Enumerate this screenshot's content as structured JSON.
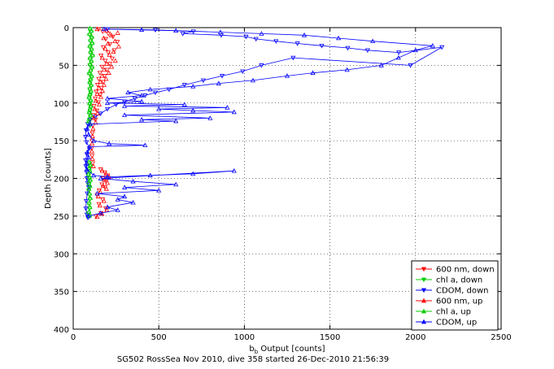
{
  "chart_data": {
    "type": "scatter",
    "xlabel_main": "b",
    "xlabel_sub": "b",
    "xlabel_rest": " Output [counts]",
    "ylabel": "Depth [counts]",
    "caption": "SG502 RossSea Nov 2010, dive 358 started 26-Dec-2010 21:56:39",
    "xlim": [
      0,
      2500
    ],
    "ylim": [
      0,
      400
    ],
    "y_reversed": true,
    "grid": true,
    "legend_position": "bottom-right",
    "xticks": [
      0,
      500,
      1000,
      1500,
      2000,
      2500
    ],
    "yticks": [
      0,
      50,
      100,
      150,
      200,
      250,
      300,
      350,
      400
    ],
    "series": [
      {
        "name": "600 nm, down",
        "color": "#ff0000",
        "marker": "down",
        "connected": false,
        "points": [
          [
            148,
            2
          ],
          [
            172,
            5
          ],
          [
            205,
            8
          ],
          [
            232,
            12
          ],
          [
            190,
            15
          ],
          [
            258,
            19
          ],
          [
            214,
            22
          ],
          [
            176,
            26
          ],
          [
            240,
            30
          ],
          [
            204,
            33
          ],
          [
            162,
            37
          ],
          [
            228,
            41
          ],
          [
            187,
            44
          ],
          [
            214,
            48
          ],
          [
            169,
            52
          ],
          [
            198,
            56
          ],
          [
            156,
            60
          ],
          [
            183,
            64
          ],
          [
            149,
            68
          ],
          [
            176,
            72
          ],
          [
            142,
            76
          ],
          [
            165,
            80
          ],
          [
            134,
            85
          ],
          [
            158,
            89
          ],
          [
            129,
            94
          ],
          [
            147,
            99
          ],
          [
            122,
            104
          ],
          [
            138,
            110
          ],
          [
            118,
            116
          ],
          [
            130,
            122
          ],
          [
            114,
            130
          ],
          [
            112,
            140
          ],
          [
            110,
            150
          ],
          [
            108,
            160
          ],
          [
            110,
            170
          ],
          [
            114,
            180
          ],
          [
            160,
            188
          ],
          [
            184,
            192
          ],
          [
            200,
            196
          ],
          [
            176,
            200
          ],
          [
            192,
            204
          ],
          [
            168,
            208
          ],
          [
            186,
            212
          ],
          [
            152,
            216
          ],
          [
            140,
            222
          ],
          [
            172,
            228
          ],
          [
            150,
            234
          ],
          [
            190,
            240
          ],
          [
            162,
            246
          ],
          [
            134,
            250
          ]
        ]
      },
      {
        "name": "chl a, down",
        "color": "#00cc00",
        "marker": "down",
        "connected": false,
        "points": [
          [
            100,
            2
          ],
          [
            104,
            6
          ],
          [
            96,
            10
          ],
          [
            108,
            14
          ],
          [
            102,
            18
          ],
          [
            110,
            22
          ],
          [
            98,
            26
          ],
          [
            106,
            30
          ],
          [
            101,
            34
          ],
          [
            112,
            38
          ],
          [
            99,
            42
          ],
          [
            105,
            46
          ],
          [
            97,
            50
          ],
          [
            109,
            54
          ],
          [
            103,
            58
          ],
          [
            95,
            62
          ],
          [
            107,
            66
          ],
          [
            100,
            70
          ],
          [
            98,
            74
          ],
          [
            104,
            78
          ],
          [
            96,
            82
          ],
          [
            102,
            86
          ],
          [
            99,
            90
          ],
          [
            94,
            94
          ],
          [
            101,
            98
          ],
          [
            97,
            102
          ],
          [
            103,
            106
          ],
          [
            99,
            110
          ],
          [
            95,
            114
          ],
          [
            100,
            118
          ],
          [
            96,
            122
          ],
          [
            92,
            126
          ],
          [
            98,
            130
          ],
          [
            94,
            180
          ],
          [
            98,
            184
          ],
          [
            92,
            188
          ],
          [
            96,
            192
          ],
          [
            90,
            196
          ],
          [
            94,
            200
          ],
          [
            98,
            204
          ],
          [
            92,
            208
          ],
          [
            96,
            212
          ],
          [
            90,
            216
          ],
          [
            94,
            222
          ],
          [
            98,
            228
          ],
          [
            92,
            234
          ],
          [
            96,
            240
          ],
          [
            90,
            246
          ],
          [
            94,
            250
          ]
        ]
      },
      {
        "name": "CDOM, down",
        "color": "#0000ff",
        "marker": "down",
        "connected": true,
        "points": [
          [
            200,
            2
          ],
          [
            480,
            3
          ],
          [
            702,
            5
          ],
          [
            640,
            8
          ],
          [
            865,
            10
          ],
          [
            1010,
            12
          ],
          [
            1068,
            15
          ],
          [
            1185,
            18
          ],
          [
            1310,
            21
          ],
          [
            1452,
            24
          ],
          [
            1604,
            27
          ],
          [
            1720,
            30
          ],
          [
            1902,
            33
          ],
          [
            2154,
            26
          ],
          [
            1970,
            50
          ],
          [
            1285,
            40
          ],
          [
            1100,
            50
          ],
          [
            990,
            58
          ],
          [
            870,
            64
          ],
          [
            760,
            70
          ],
          [
            650,
            76
          ],
          [
            560,
            82
          ],
          [
            480,
            86
          ],
          [
            420,
            90
          ],
          [
            360,
            94
          ],
          [
            300,
            98
          ],
          [
            250,
            102
          ],
          [
            200,
            108
          ],
          [
            160,
            114
          ],
          [
            130,
            118
          ],
          [
            100,
            122
          ],
          [
            85,
            128
          ],
          [
            75,
            136
          ],
          [
            72,
            145
          ],
          [
            78,
            152
          ],
          [
            95,
            160
          ],
          [
            80,
            168
          ],
          [
            72,
            176
          ],
          [
            74,
            184
          ],
          [
            78,
            192
          ],
          [
            80,
            200
          ],
          [
            84,
            206
          ],
          [
            90,
            212
          ],
          [
            82,
            220
          ],
          [
            76,
            230
          ],
          [
            74,
            240
          ],
          [
            80,
            248
          ],
          [
            86,
            252
          ]
        ]
      },
      {
        "name": "600 nm, up",
        "color": "#ff0000",
        "marker": "up",
        "connected": false,
        "points": [
          [
            140,
            2
          ],
          [
            196,
            4
          ],
          [
            260,
            7
          ],
          [
            222,
            10
          ],
          [
            178,
            14
          ],
          [
            244,
            18
          ],
          [
            203,
            21
          ],
          [
            266,
            25
          ],
          [
            188,
            28
          ],
          [
            235,
            32
          ],
          [
            212,
            36
          ],
          [
            170,
            40
          ],
          [
            246,
            44
          ],
          [
            195,
            48
          ],
          [
            224,
            52
          ],
          [
            180,
            56
          ],
          [
            208,
            60
          ],
          [
            168,
            64
          ],
          [
            192,
            68
          ],
          [
            158,
            72
          ],
          [
            180,
            76
          ],
          [
            150,
            80
          ],
          [
            171,
            84
          ],
          [
            140,
            88
          ],
          [
            161,
            92
          ],
          [
            133,
            97
          ],
          [
            152,
            102
          ],
          [
            126,
            108
          ],
          [
            142,
            114
          ],
          [
            120,
            120
          ],
          [
            131,
            126
          ],
          [
            116,
            134
          ],
          [
            113,
            144
          ],
          [
            110,
            154
          ],
          [
            109,
            164
          ],
          [
            112,
            174
          ],
          [
            118,
            184
          ],
          [
            170,
            190
          ],
          [
            192,
            194
          ],
          [
            210,
            198
          ],
          [
            182,
            202
          ],
          [
            200,
            206
          ],
          [
            174,
            210
          ],
          [
            194,
            214
          ],
          [
            158,
            218
          ],
          [
            146,
            224
          ],
          [
            180,
            230
          ],
          [
            156,
            236
          ],
          [
            196,
            242
          ],
          [
            168,
            247
          ],
          [
            140,
            251
          ]
        ]
      },
      {
        "name": "chl a, up",
        "color": "#00cc00",
        "marker": "up",
        "connected": false,
        "points": [
          [
            98,
            1
          ],
          [
            106,
            4
          ],
          [
            94,
            8
          ],
          [
            110,
            12
          ],
          [
            100,
            16
          ],
          [
            112,
            20
          ],
          [
            96,
            24
          ],
          [
            108,
            28
          ],
          [
            102,
            32
          ],
          [
            114,
            36
          ],
          [
            97,
            40
          ],
          [
            107,
            44
          ],
          [
            99,
            48
          ],
          [
            111,
            52
          ],
          [
            101,
            56
          ],
          [
            93,
            60
          ],
          [
            109,
            64
          ],
          [
            102,
            68
          ],
          [
            96,
            72
          ],
          [
            106,
            76
          ],
          [
            98,
            80
          ],
          [
            104,
            84
          ],
          [
            97,
            88
          ],
          [
            92,
            92
          ],
          [
            103,
            96
          ],
          [
            95,
            100
          ],
          [
            101,
            104
          ],
          [
            97,
            108
          ],
          [
            93,
            112
          ],
          [
            102,
            116
          ],
          [
            94,
            120
          ],
          [
            90,
            124
          ],
          [
            100,
            128
          ],
          [
            92,
            178
          ],
          [
            100,
            182
          ],
          [
            94,
            186
          ],
          [
            98,
            190
          ],
          [
            88,
            194
          ],
          [
            96,
            198
          ],
          [
            100,
            202
          ],
          [
            90,
            206
          ],
          [
            98,
            210
          ],
          [
            92,
            214
          ],
          [
            96,
            220
          ],
          [
            100,
            226
          ],
          [
            94,
            232
          ],
          [
            98,
            238
          ],
          [
            92,
            244
          ],
          [
            96,
            249
          ]
        ]
      },
      {
        "name": "CDOM, up",
        "color": "#0000ff",
        "marker": "up",
        "connected": true,
        "points": [
          [
            90,
            250
          ],
          [
            160,
            246
          ],
          [
            260,
            242
          ],
          [
            200,
            238
          ],
          [
            350,
            232
          ],
          [
            260,
            228
          ],
          [
            300,
            224
          ],
          [
            140,
            220
          ],
          [
            500,
            216
          ],
          [
            300,
            212
          ],
          [
            600,
            208
          ],
          [
            350,
            204
          ],
          [
            160,
            200
          ],
          [
            940,
            190
          ],
          [
            700,
            194
          ],
          [
            450,
            196
          ],
          [
            200,
            198
          ],
          [
            120,
            196
          ],
          [
            80,
            188
          ],
          [
            78,
            180
          ],
          [
            90,
            172
          ],
          [
            82,
            165
          ],
          [
            95,
            158
          ],
          [
            420,
            156
          ],
          [
            210,
            154
          ],
          [
            120,
            150
          ],
          [
            90,
            142
          ],
          [
            82,
            134
          ],
          [
            100,
            128
          ],
          [
            600,
            124
          ],
          [
            400,
            122
          ],
          [
            800,
            120
          ],
          [
            300,
            116
          ],
          [
            940,
            112
          ],
          [
            700,
            110
          ],
          [
            500,
            108
          ],
          [
            900,
            106
          ],
          [
            300,
            104
          ],
          [
            650,
            102
          ],
          [
            200,
            100
          ],
          [
            400,
            98
          ],
          [
            200,
            94
          ],
          [
            400,
            90
          ],
          [
            320,
            86
          ],
          [
            450,
            82
          ],
          [
            700,
            78
          ],
          [
            850,
            74
          ],
          [
            1050,
            70
          ],
          [
            1250,
            64
          ],
          [
            1400,
            60
          ],
          [
            1600,
            56
          ],
          [
            1800,
            50
          ],
          [
            1900,
            40
          ],
          [
            2000,
            30
          ],
          [
            2100,
            24
          ],
          [
            1750,
            18
          ],
          [
            1550,
            14
          ],
          [
            1350,
            10
          ],
          [
            1100,
            8
          ],
          [
            860,
            6
          ],
          [
            600,
            4
          ],
          [
            400,
            3
          ],
          [
            180,
            2
          ]
        ]
      }
    ]
  }
}
